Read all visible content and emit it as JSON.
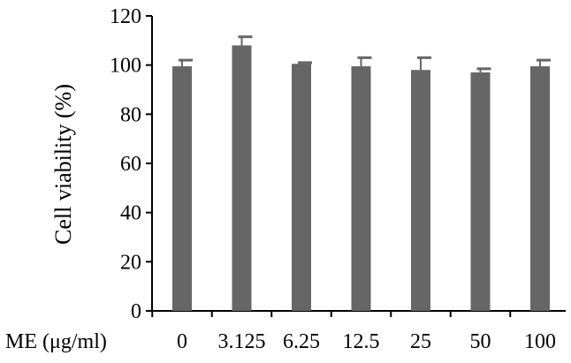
{
  "chart_data": {
    "type": "bar",
    "title": "",
    "xlabel": "ME (μg/ml)",
    "ylabel": "Cell viability  (%)",
    "categories": [
      "0",
      "3.125",
      "6.25",
      "12.5",
      "25",
      "50",
      "100"
    ],
    "series": [
      {
        "values": [
          99.5,
          108,
          100.5,
          99.5,
          98,
          97,
          99.5
        ],
        "error": [
          2.5,
          3.5,
          0.5,
          3.5,
          5,
          1.5,
          2.5
        ]
      }
    ],
    "ylim": [
      0,
      120
    ],
    "yticks": [
      0,
      20,
      40,
      60,
      80,
      100,
      120
    ],
    "grid": false,
    "legend": "none",
    "bar_color": "#666666",
    "axis_color": "#000000"
  }
}
